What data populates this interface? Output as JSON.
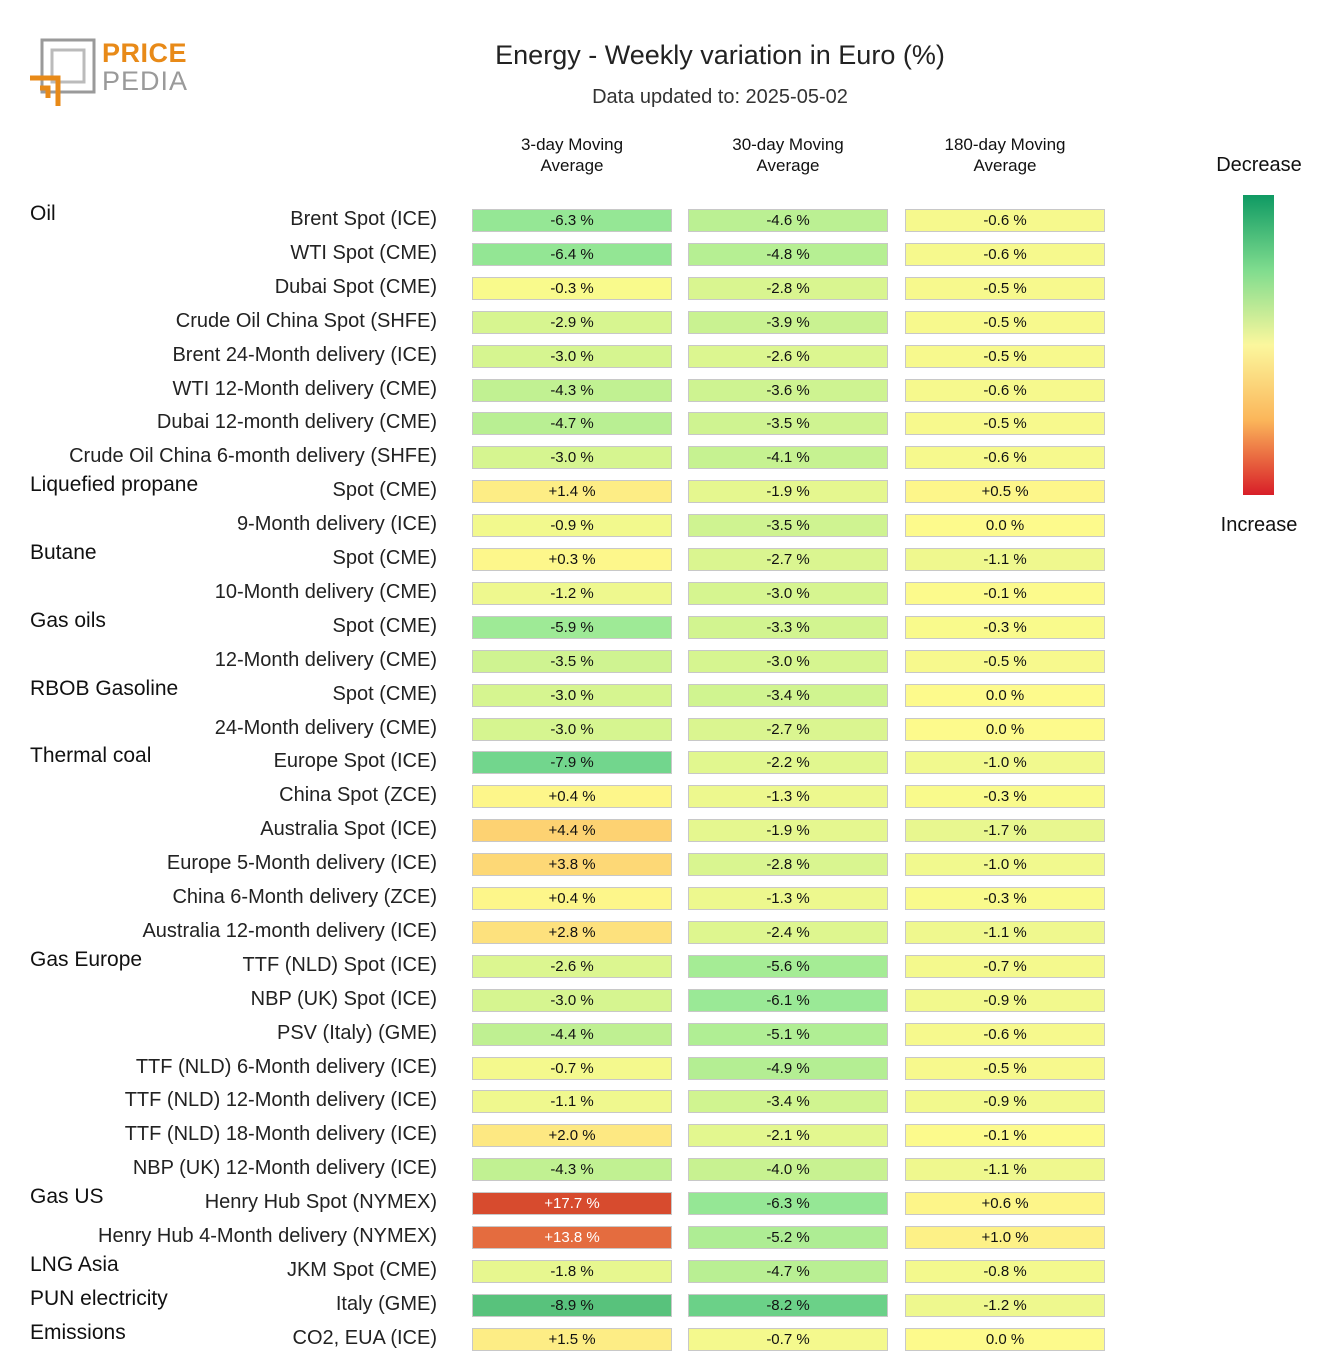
{
  "logo": {
    "word1": "PRICE",
    "word2": "PEDIA"
  },
  "title": "Energy - Weekly variation in Euro (%)",
  "subtitle": "Data updated to: 2025-05-02",
  "legend": {
    "top": "Decrease",
    "bottom": "Increase"
  },
  "chart_data": {
    "type": "table",
    "title": "Energy - Weekly variation in Euro (%)",
    "unit": "%",
    "columns": [
      "3-day Moving\nAverage",
      "30-day Moving\nAverage",
      "180-day Moving\nAverage"
    ],
    "groups": [
      {
        "name": "Oil",
        "rows": [
          {
            "label": "Brent Spot (ICE)",
            "values": [
              -6.3,
              -4.6,
              -0.6
            ],
            "display": [
              "-6.3 %",
              "-4.6 %",
              "-0.6 %"
            ]
          },
          {
            "label": "WTI Spot (CME)",
            "values": [
              -6.4,
              -4.8,
              -0.6
            ],
            "display": [
              "-6.4 %",
              "-4.8 %",
              "-0.6 %"
            ]
          },
          {
            "label": "Dubai Spot (CME)",
            "values": [
              -0.3,
              -2.8,
              -0.5
            ],
            "display": [
              "-0.3 %",
              "-2.8 %",
              "-0.5 %"
            ]
          },
          {
            "label": "Crude Oil China Spot (SHFE)",
            "values": [
              -2.9,
              -3.9,
              -0.5
            ],
            "display": [
              "-2.9 %",
              "-3.9 %",
              "-0.5 %"
            ]
          },
          {
            "label": "Brent 24-Month delivery (ICE)",
            "values": [
              -3.0,
              -2.6,
              -0.5
            ],
            "display": [
              "-3.0 %",
              "-2.6 %",
              "-0.5 %"
            ]
          },
          {
            "label": "WTI 12-Month delivery (CME)",
            "values": [
              -4.3,
              -3.6,
              -0.6
            ],
            "display": [
              "-4.3 %",
              "-3.6 %",
              "-0.6 %"
            ]
          },
          {
            "label": "Dubai 12-month delivery (CME)",
            "values": [
              -4.7,
              -3.5,
              -0.5
            ],
            "display": [
              "-4.7 %",
              "-3.5 %",
              "-0.5 %"
            ]
          },
          {
            "label": "Crude Oil China 6-month delivery (SHFE)",
            "values": [
              -3.0,
              -4.1,
              -0.6
            ],
            "display": [
              "-3.0 %",
              "-4.1 %",
              "-0.6 %"
            ]
          }
        ]
      },
      {
        "name": "Liquefied propane",
        "rows": [
          {
            "label": "Spot (CME)",
            "values": [
              1.4,
              -1.9,
              0.5
            ],
            "display": [
              "+1.4 %",
              "-1.9 %",
              "+0.5 %"
            ]
          },
          {
            "label": "9-Month delivery (ICE)",
            "values": [
              -0.9,
              -3.5,
              0.0
            ],
            "display": [
              "-0.9 %",
              "-3.5 %",
              "0.0 %"
            ]
          }
        ]
      },
      {
        "name": "Butane",
        "rows": [
          {
            "label": "Spot (CME)",
            "values": [
              0.3,
              -2.7,
              -1.1
            ],
            "display": [
              "+0.3 %",
              "-2.7 %",
              "-1.1 %"
            ]
          },
          {
            "label": "10-Month delivery (CME)",
            "values": [
              -1.2,
              -3.0,
              -0.1
            ],
            "display": [
              "-1.2 %",
              "-3.0 %",
              "-0.1 %"
            ]
          }
        ]
      },
      {
        "name": "Gas oils",
        "rows": [
          {
            "label": "Spot (CME)",
            "values": [
              -5.9,
              -3.3,
              -0.3
            ],
            "display": [
              "-5.9 %",
              "-3.3 %",
              "-0.3 %"
            ]
          },
          {
            "label": "12-Month delivery (CME)",
            "values": [
              -3.5,
              -3.0,
              -0.5
            ],
            "display": [
              "-3.5 %",
              "-3.0 %",
              "-0.5 %"
            ]
          }
        ]
      },
      {
        "name": "RBOB Gasoline",
        "rows": [
          {
            "label": "Spot (CME)",
            "values": [
              -3.0,
              -3.4,
              0.0
            ],
            "display": [
              "-3.0 %",
              "-3.4 %",
              "0.0 %"
            ]
          },
          {
            "label": "24-Month delivery (CME)",
            "values": [
              -3.0,
              -2.7,
              0.0
            ],
            "display": [
              "-3.0 %",
              "-2.7 %",
              "0.0 %"
            ]
          }
        ]
      },
      {
        "name": "Thermal coal",
        "rows": [
          {
            "label": "Europe Spot (ICE)",
            "values": [
              -7.9,
              -2.2,
              -1.0
            ],
            "display": [
              "-7.9 %",
              "-2.2 %",
              "-1.0 %"
            ]
          },
          {
            "label": "China Spot (ZCE)",
            "values": [
              0.4,
              -1.3,
              -0.3
            ],
            "display": [
              "+0.4 %",
              "-1.3 %",
              "-0.3 %"
            ]
          },
          {
            "label": "Australia Spot (ICE)",
            "values": [
              4.4,
              -1.9,
              -1.7
            ],
            "display": [
              "+4.4 %",
              "-1.9 %",
              "-1.7 %"
            ]
          },
          {
            "label": "Europe 5-Month delivery (ICE)",
            "values": [
              3.8,
              -2.8,
              -1.0
            ],
            "display": [
              "+3.8 %",
              "-2.8 %",
              "-1.0 %"
            ]
          },
          {
            "label": "China 6-Month delivery (ZCE)",
            "values": [
              0.4,
              -1.3,
              -0.3
            ],
            "display": [
              "+0.4 %",
              "-1.3 %",
              "-0.3 %"
            ]
          },
          {
            "label": "Australia 12-month delivery (ICE)",
            "values": [
              2.8,
              -2.4,
              -1.1
            ],
            "display": [
              "+2.8 %",
              "-2.4 %",
              "-1.1 %"
            ]
          }
        ]
      },
      {
        "name": "Gas Europe",
        "rows": [
          {
            "label": "TTF (NLD) Spot (ICE)",
            "values": [
              -2.6,
              -5.6,
              -0.7
            ],
            "display": [
              "-2.6 %",
              "-5.6 %",
              "-0.7 %"
            ]
          },
          {
            "label": "NBP (UK) Spot (ICE)",
            "values": [
              -3.0,
              -6.1,
              -0.9
            ],
            "display": [
              "-3.0 %",
              "-6.1 %",
              "-0.9 %"
            ]
          },
          {
            "label": "PSV (Italy) (GME)",
            "values": [
              -4.4,
              -5.1,
              -0.6
            ],
            "display": [
              "-4.4 %",
              "-5.1 %",
              "-0.6 %"
            ]
          },
          {
            "label": "TTF (NLD) 6-Month delivery (ICE)",
            "values": [
              -0.7,
              -4.9,
              -0.5
            ],
            "display": [
              "-0.7 %",
              "-4.9 %",
              "-0.5 %"
            ]
          },
          {
            "label": "TTF (NLD) 12-Month delivery (ICE)",
            "values": [
              -1.1,
              -3.4,
              -0.9
            ],
            "display": [
              "-1.1 %",
              "-3.4 %",
              "-0.9 %"
            ]
          },
          {
            "label": "TTF (NLD) 18-Month delivery (ICE)",
            "values": [
              2.0,
              -2.1,
              -0.1
            ],
            "display": [
              "+2.0 %",
              "-2.1 %",
              "-0.1 %"
            ]
          },
          {
            "label": "NBP (UK) 12-Month delivery (ICE)",
            "values": [
              -4.3,
              -4.0,
              -1.1
            ],
            "display": [
              "-4.3 %",
              "-4.0 %",
              "-1.1 %"
            ]
          }
        ]
      },
      {
        "name": "Gas US",
        "rows": [
          {
            "label": "Henry Hub Spot (NYMEX)",
            "values": [
              17.7,
              -6.3,
              0.6
            ],
            "display": [
              "+17.7 %",
              "-6.3 %",
              "+0.6 %"
            ]
          },
          {
            "label": "Henry Hub 4-Month delivery (NYMEX)",
            "values": [
              13.8,
              -5.2,
              1.0
            ],
            "display": [
              "+13.8 %",
              "-5.2 %",
              "+1.0 %"
            ]
          }
        ]
      },
      {
        "name": "LNG Asia",
        "rows": [
          {
            "label": "JKM Spot (CME)",
            "values": [
              -1.8,
              -4.7,
              -0.8
            ],
            "display": [
              "-1.8 %",
              "-4.7 %",
              "-0.8 %"
            ]
          }
        ]
      },
      {
        "name": "PUN electricity",
        "rows": [
          {
            "label": "Italy (GME)",
            "values": [
              -8.9,
              -8.2,
              -1.2
            ],
            "display": [
              "-8.9 %",
              "-8.2 %",
              "-1.2 %"
            ]
          }
        ]
      },
      {
        "name": "Emissions",
        "rows": [
          {
            "label": "CO2, EUA (ICE)",
            "values": [
              1.5,
              -0.7,
              0.0
            ],
            "display": [
              "+1.5 %",
              "-0.7 %",
              "0.0 %"
            ]
          }
        ]
      }
    ]
  }
}
